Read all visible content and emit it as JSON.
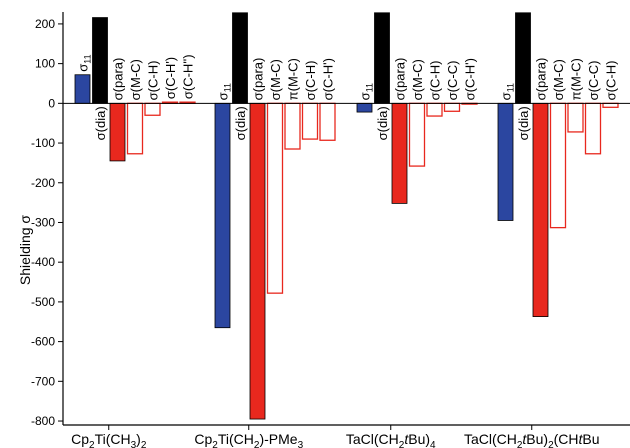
{
  "chart_data": {
    "type": "bar",
    "ylabel": "Shielding σ",
    "ylim": [
      -810,
      230
    ],
    "yticks": [
      200,
      100,
      0,
      -100,
      -200,
      -300,
      -400,
      -500,
      -600,
      -700,
      -800
    ],
    "colors": {
      "sigma11": "#2b46a0",
      "dia": "#000000",
      "para": "#e8281e",
      "other_stroke": "#e8281e",
      "other_fill": "#ffffff"
    },
    "groups": [
      {
        "category": "Cp₂Ti(CH₃)₂",
        "category_parts": [
          [
            "Cp",
            ""
          ],
          [
            "2",
            "sub"
          ],
          [
            "Ti(CH",
            ""
          ],
          [
            "3",
            "sub"
          ],
          [
            ")",
            ""
          ],
          [
            "2",
            "sub"
          ]
        ],
        "bars": [
          {
            "key": "sigma11",
            "label": "σ11",
            "value": 72,
            "style": "sigma11",
            "label_pos": "above"
          },
          {
            "key": "dia",
            "label": "σ(dia)",
            "value": 216,
            "style": "dia",
            "label_pos": "below"
          },
          {
            "key": "para",
            "label": "σ(para)",
            "value": -145,
            "style": "para",
            "label_pos": "above"
          },
          {
            "key": "m-c",
            "label": "σ(M-C)",
            "value": -127,
            "style": "other",
            "label_pos": "above"
          },
          {
            "key": "c-h",
            "label": "σ(C-H)",
            "value": -30,
            "style": "other",
            "label_pos": "above"
          },
          {
            "key": "c-h1",
            "label": "σ(C-H')",
            "value": 3,
            "style": "other",
            "label_pos": "above"
          },
          {
            "key": "c-h2",
            "label": "σ(C-H'')",
            "value": 3,
            "style": "other",
            "label_pos": "above"
          }
        ]
      },
      {
        "category": "Cp₂Ti(CH₂)-PMe₃",
        "category_parts": [
          [
            "Cp",
            ""
          ],
          [
            "2",
            "sub"
          ],
          [
            "Ti(CH",
            ""
          ],
          [
            "2",
            "sub"
          ],
          [
            ")-PMe",
            ""
          ],
          [
            "3",
            "sub"
          ]
        ],
        "bars": [
          {
            "key": "sigma11",
            "label": "σ11",
            "value": -565,
            "style": "sigma11",
            "label_pos": "above"
          },
          {
            "key": "dia",
            "label": "σ(dia)",
            "value": 228,
            "style": "dia",
            "label_pos": "below"
          },
          {
            "key": "para",
            "label": "σ(para)",
            "value": -795,
            "style": "para",
            "label_pos": "above"
          },
          {
            "key": "m-c",
            "label": "σ(M-C)",
            "value": -478,
            "style": "other",
            "label_pos": "above"
          },
          {
            "key": "pi-m-c",
            "label": "π(M-C)",
            "value": -115,
            "style": "other",
            "label_pos": "above"
          },
          {
            "key": "c-h",
            "label": "σ(C-H)",
            "value": -90,
            "style": "other",
            "label_pos": "above"
          },
          {
            "key": "c-h1",
            "label": "σ(C-H')",
            "value": -93,
            "style": "other",
            "label_pos": "above"
          }
        ]
      },
      {
        "category": "TaCl(CH₂tBu)₄",
        "category_parts": [
          [
            "TaCl(CH",
            ""
          ],
          [
            "2",
            "sub"
          ],
          [
            "t",
            "italic"
          ],
          [
            "Bu)",
            ""
          ],
          [
            "4",
            "sub"
          ]
        ],
        "bars": [
          {
            "key": "sigma11",
            "label": "σ11",
            "value": -22,
            "style": "sigma11",
            "label_pos": "above"
          },
          {
            "key": "dia",
            "label": "σ(dia)",
            "value": 228,
            "style": "dia",
            "label_pos": "below"
          },
          {
            "key": "para",
            "label": "σ(para)",
            "value": -252,
            "style": "para",
            "label_pos": "above"
          },
          {
            "key": "m-c",
            "label": "σ(M-C)",
            "value": -158,
            "style": "other",
            "label_pos": "above"
          },
          {
            "key": "c-h",
            "label": "σ(C-H)",
            "value": -32,
            "style": "other",
            "label_pos": "above"
          },
          {
            "key": "c-c",
            "label": "σ(C-C)",
            "value": -20,
            "style": "other",
            "label_pos": "above"
          },
          {
            "key": "c-h1",
            "label": "σ(C-H')",
            "value": 0,
            "style": "other",
            "label_pos": "above"
          }
        ]
      },
      {
        "category": "TaCl(CH₂tBu)₂(CHtBu",
        "category_parts": [
          [
            "TaCl(CH",
            ""
          ],
          [
            "2",
            "sub"
          ],
          [
            "t",
            "italic"
          ],
          [
            "Bu)",
            ""
          ],
          [
            "2",
            "sub"
          ],
          [
            "(CH",
            ""
          ],
          [
            "t",
            "italic"
          ],
          [
            "Bu",
            ""
          ]
        ],
        "bars": [
          {
            "key": "sigma11",
            "label": "σ11",
            "value": -295,
            "style": "sigma11",
            "label_pos": "above"
          },
          {
            "key": "dia",
            "label": "σ(dia)",
            "value": 228,
            "style": "dia",
            "label_pos": "below"
          },
          {
            "key": "para",
            "label": "σ(para)",
            "value": -537,
            "style": "para",
            "label_pos": "above"
          },
          {
            "key": "m-c",
            "label": "σ(M-C)",
            "value": -313,
            "style": "other",
            "label_pos": "above"
          },
          {
            "key": "pi-m-c",
            "label": "π(M-C)",
            "value": -72,
            "style": "other",
            "label_pos": "above"
          },
          {
            "key": "c-c",
            "label": "σ(C-C)",
            "value": -127,
            "style": "other",
            "label_pos": "above"
          },
          {
            "key": "c-h",
            "label": "σ(C-H)",
            "value": -10,
            "style": "other",
            "label_pos": "above"
          }
        ]
      }
    ]
  }
}
